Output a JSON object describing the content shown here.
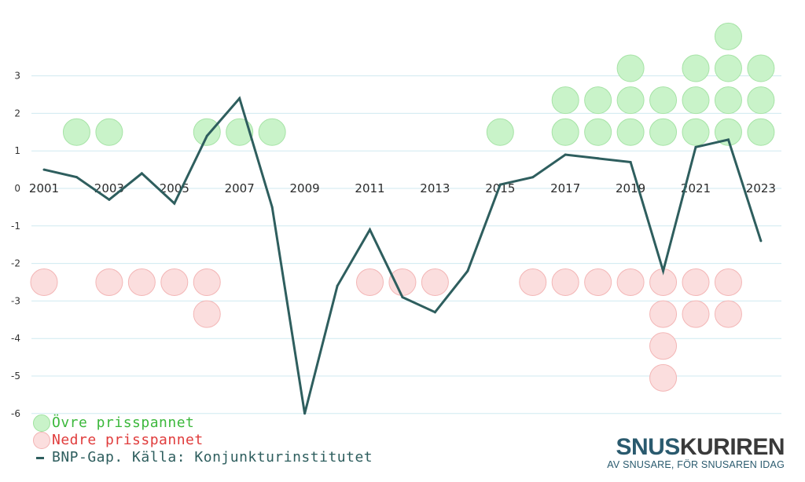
{
  "chart_data": {
    "type": "line",
    "x": [
      2001,
      2002,
      2003,
      2004,
      2005,
      2006,
      2007,
      2008,
      2009,
      2010,
      2011,
      2012,
      2013,
      2014,
      2015,
      2016,
      2017,
      2018,
      2019,
      2020,
      2021,
      2022,
      2023
    ],
    "x_tick_labels": [
      "2001",
      "2003",
      "2005",
      "2007",
      "2009",
      "2011",
      "2013",
      "2015",
      "2017",
      "2019",
      "2021",
      "2023"
    ],
    "y_tick_labels": [
      "3",
      "2",
      "1",
      "0",
      "-1",
      "-2",
      "-3",
      "-4",
      "-5",
      "-6"
    ],
    "ylim": [
      -6,
      4
    ],
    "grid": true,
    "series": [
      {
        "name": "BNP-Gap. Källa: Konjunkturinstitutet",
        "color": "#2e5e5e",
        "values": [
          0.5,
          0.3,
          -0.3,
          0.4,
          -0.4,
          1.4,
          2.4,
          -0.5,
          -6.0,
          -2.6,
          -1.1,
          -2.9,
          -3.3,
          -2.2,
          0.1,
          0.3,
          0.9,
          0.8,
          0.7,
          -2.2,
          1.1,
          1.3,
          -1.4
        ]
      }
    ],
    "upper_counts": [
      0,
      1,
      1,
      0,
      0,
      1,
      1,
      1,
      0,
      0,
      0,
      0,
      0,
      0,
      1,
      0,
      2,
      2,
      3,
      2,
      3,
      4,
      3
    ],
    "lower_counts": [
      1,
      0,
      1,
      1,
      1,
      2,
      0,
      0,
      0,
      0,
      1,
      1,
      1,
      0,
      0,
      1,
      1,
      1,
      1,
      4,
      2,
      2,
      0
    ]
  },
  "legend": {
    "upper": {
      "label": "Övre prisspannet",
      "color": "#3cb83c"
    },
    "lower": {
      "label": "Nedre prisspannet",
      "color": "#e03c3c"
    },
    "line": {
      "label": "BNP-Gap. Källa: Konjunkturinstitutet",
      "color": "#2e5e5e"
    }
  },
  "brand": {
    "logo_part1": "SNUS",
    "logo_part2": "KURIREN",
    "color1": "#2a5a6e",
    "color2": "#3a3a3a",
    "tagline": "AV SNUSARE, FÖR SNUSAREN IDAG"
  }
}
